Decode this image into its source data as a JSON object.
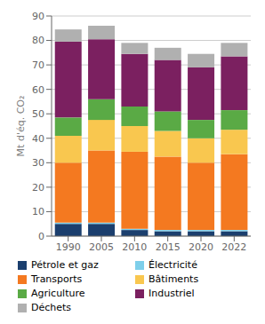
{
  "chart_data": {
    "type": "bar",
    "stacked": true,
    "categories": [
      "1990",
      "2005",
      "2010",
      "2015",
      "2020",
      "2022"
    ],
    "series": [
      {
        "name": "Pétrole et gaz",
        "color": "#1b3f6e",
        "values": [
          5.0,
          5.0,
          2.5,
          2.0,
          2.0,
          2.0
        ]
      },
      {
        "name": "Électricité",
        "color": "#7ecfea",
        "values": [
          0.5,
          0.5,
          0.5,
          0.5,
          0.5,
          0.5
        ]
      },
      {
        "name": "Transports",
        "color": "#f47920",
        "values": [
          24.5,
          29.5,
          31.5,
          30.0,
          27.5,
          31.0
        ]
      },
      {
        "name": "Bâtiments",
        "color": "#f9c74f",
        "values": [
          11.0,
          12.5,
          10.5,
          10.5,
          10.0,
          10.0
        ]
      },
      {
        "name": "Agriculture",
        "color": "#5aaa45",
        "values": [
          7.5,
          8.5,
          8.0,
          8.0,
          7.5,
          8.0
        ]
      },
      {
        "name": "Industriel",
        "color": "#7b2060",
        "values": [
          31.0,
          24.5,
          21.5,
          21.0,
          21.5,
          22.0
        ]
      },
      {
        "name": "Déchets",
        "color": "#b0b0b0",
        "values": [
          5.0,
          5.5,
          4.5,
          5.0,
          5.5,
          5.5
        ]
      }
    ],
    "ylabel": "Mt d'éq. CO₂",
    "ylim": [
      0,
      90
    ],
    "yticks": [
      0,
      10,
      20,
      30,
      40,
      50,
      60,
      70,
      80,
      90
    ],
    "grid": true,
    "legend": "bottom"
  }
}
